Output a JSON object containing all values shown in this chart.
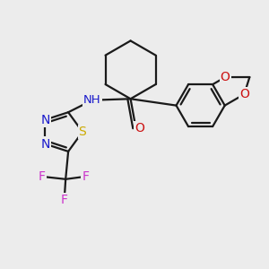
{
  "bg_color": "#ececec",
  "bond_color": "#1a1a1a",
  "bond_width": 1.6,
  "atom_colors": {
    "N": "#1a1acc",
    "O": "#cc1111",
    "S": "#ccaa00",
    "F": "#cc33cc",
    "H": "#117777",
    "C": "#1a1a1a"
  },
  "font_size": 9.0
}
